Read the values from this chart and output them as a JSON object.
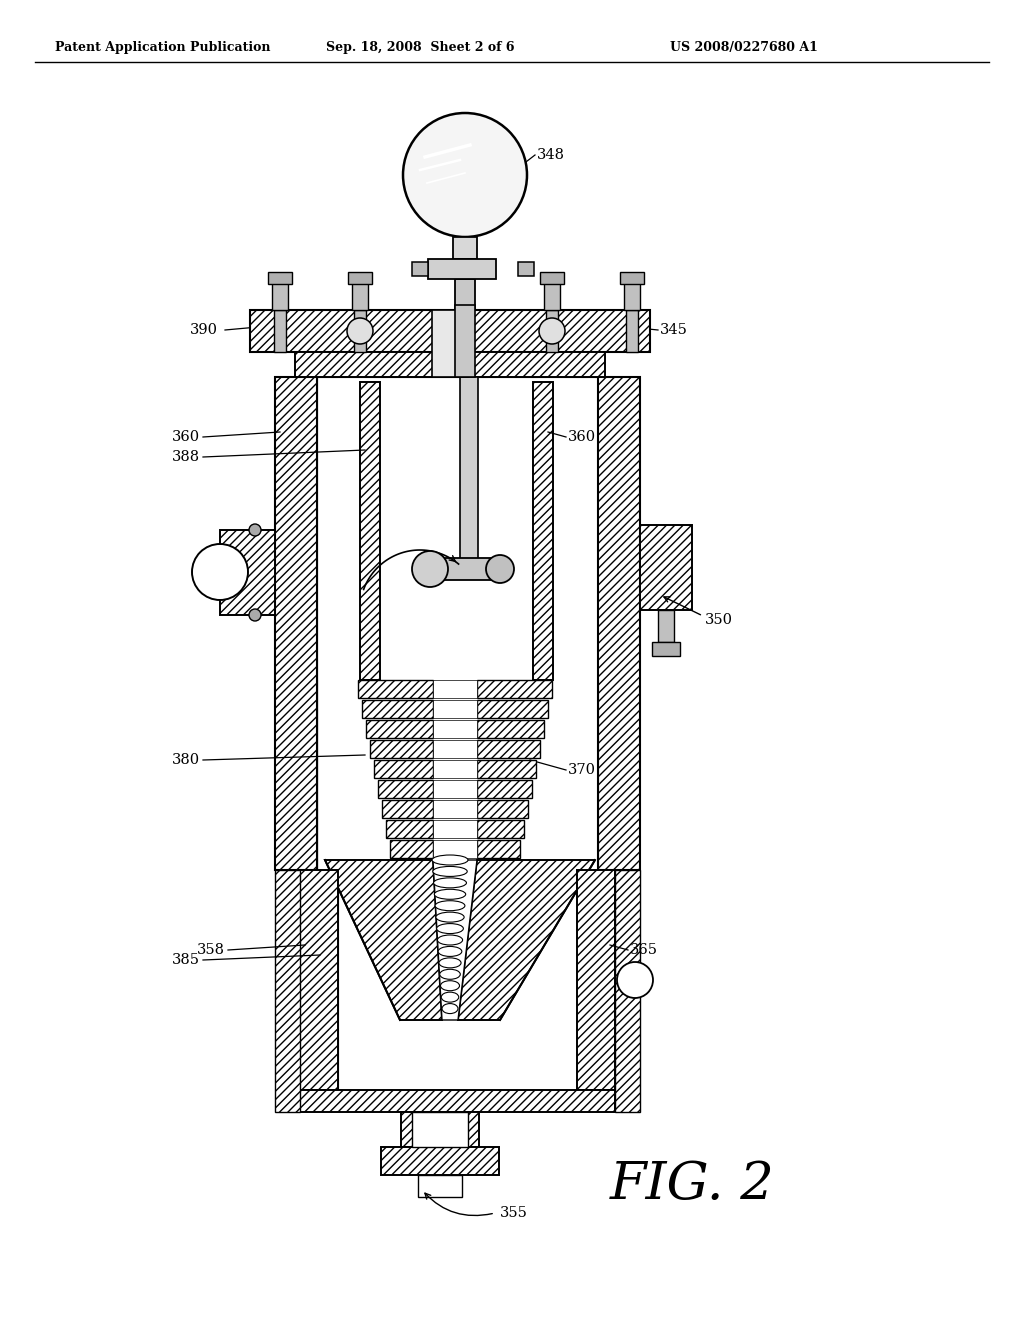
{
  "bg_color": "#ffffff",
  "header_left": "Patent Application Publication",
  "header_mid": "Sep. 18, 2008  Sheet 2 of 6",
  "header_right": "US 2008/0227680 A1",
  "fig_label": "FIG. 2",
  "line_color": "#000000",
  "hatch_color": "#000000"
}
